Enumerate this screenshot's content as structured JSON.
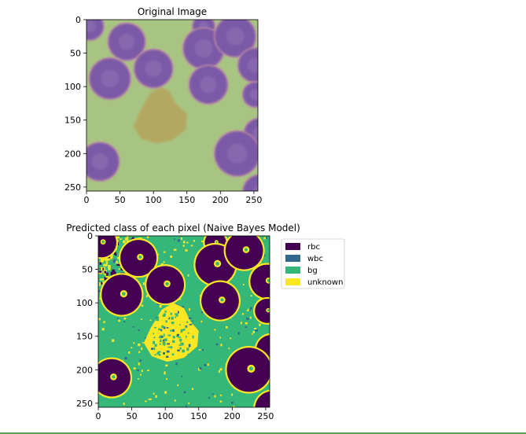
{
  "chart_data": [
    {
      "type": "image",
      "title": "Original Image",
      "xlim": [
        0,
        256
      ],
      "ylim": [
        256,
        0
      ],
      "xticks": [
        0,
        50,
        100,
        150,
        200,
        250
      ],
      "yticks": [
        0,
        50,
        100,
        150,
        200,
        250
      ],
      "xtick_labels": [
        "0",
        "50",
        "100",
        "150",
        "200",
        "250"
      ],
      "ytick_labels": [
        "0",
        "50",
        "100",
        "150",
        "200",
        "250"
      ],
      "background_color": "#a8c482",
      "cells": [
        {
          "kind": "rbc",
          "cx": 5,
          "cy": 10,
          "r": 20
        },
        {
          "kind": "rbc",
          "cx": 60,
          "cy": 33,
          "r": 27
        },
        {
          "kind": "rbc",
          "cx": 175,
          "cy": 10,
          "r": 16
        },
        {
          "kind": "rbc",
          "cx": 175,
          "cy": 43,
          "r": 30
        },
        {
          "kind": "rbc",
          "cx": 222,
          "cy": 25,
          "r": 30
        },
        {
          "kind": "rbc",
          "cx": 35,
          "cy": 88,
          "r": 30
        },
        {
          "kind": "rbc",
          "cx": 100,
          "cy": 73,
          "r": 28
        },
        {
          "kind": "rbc",
          "cx": 182,
          "cy": 97,
          "r": 28
        },
        {
          "kind": "rbc",
          "cx": 252,
          "cy": 68,
          "r": 25
        },
        {
          "kind": "rbc",
          "cx": 252,
          "cy": 112,
          "r": 18
        },
        {
          "kind": "rbc",
          "cx": 258,
          "cy": 170,
          "r": 22
        },
        {
          "kind": "rbc",
          "cx": 20,
          "cy": 212,
          "r": 28
        },
        {
          "kind": "rbc",
          "cx": 225,
          "cy": 200,
          "r": 33
        },
        {
          "kind": "rbc",
          "cx": 260,
          "cy": 258,
          "r": 26
        }
      ],
      "wbc_blob_color": "#b6a45c"
    },
    {
      "type": "heatmap",
      "title": "Predicted class of each pixel (Naive Bayes Model)",
      "xlim": [
        0,
        256
      ],
      "ylim": [
        256,
        0
      ],
      "xticks": [
        0,
        50,
        100,
        150,
        200,
        250
      ],
      "yticks": [
        0,
        50,
        100,
        150,
        200,
        250
      ],
      "xtick_labels": [
        "0",
        "50",
        "100",
        "150",
        "200",
        "250"
      ],
      "ytick_labels": [
        "0",
        "50",
        "100",
        "150",
        "200",
        "250"
      ],
      "classes": [
        {
          "name": "rbc",
          "color": "#440154"
        },
        {
          "name": "wbc",
          "color": "#31688e"
        },
        {
          "name": "bg",
          "color": "#35b779"
        },
        {
          "name": "unknown",
          "color": "#fde725"
        }
      ],
      "legend_position": "outside-right-top"
    }
  ]
}
